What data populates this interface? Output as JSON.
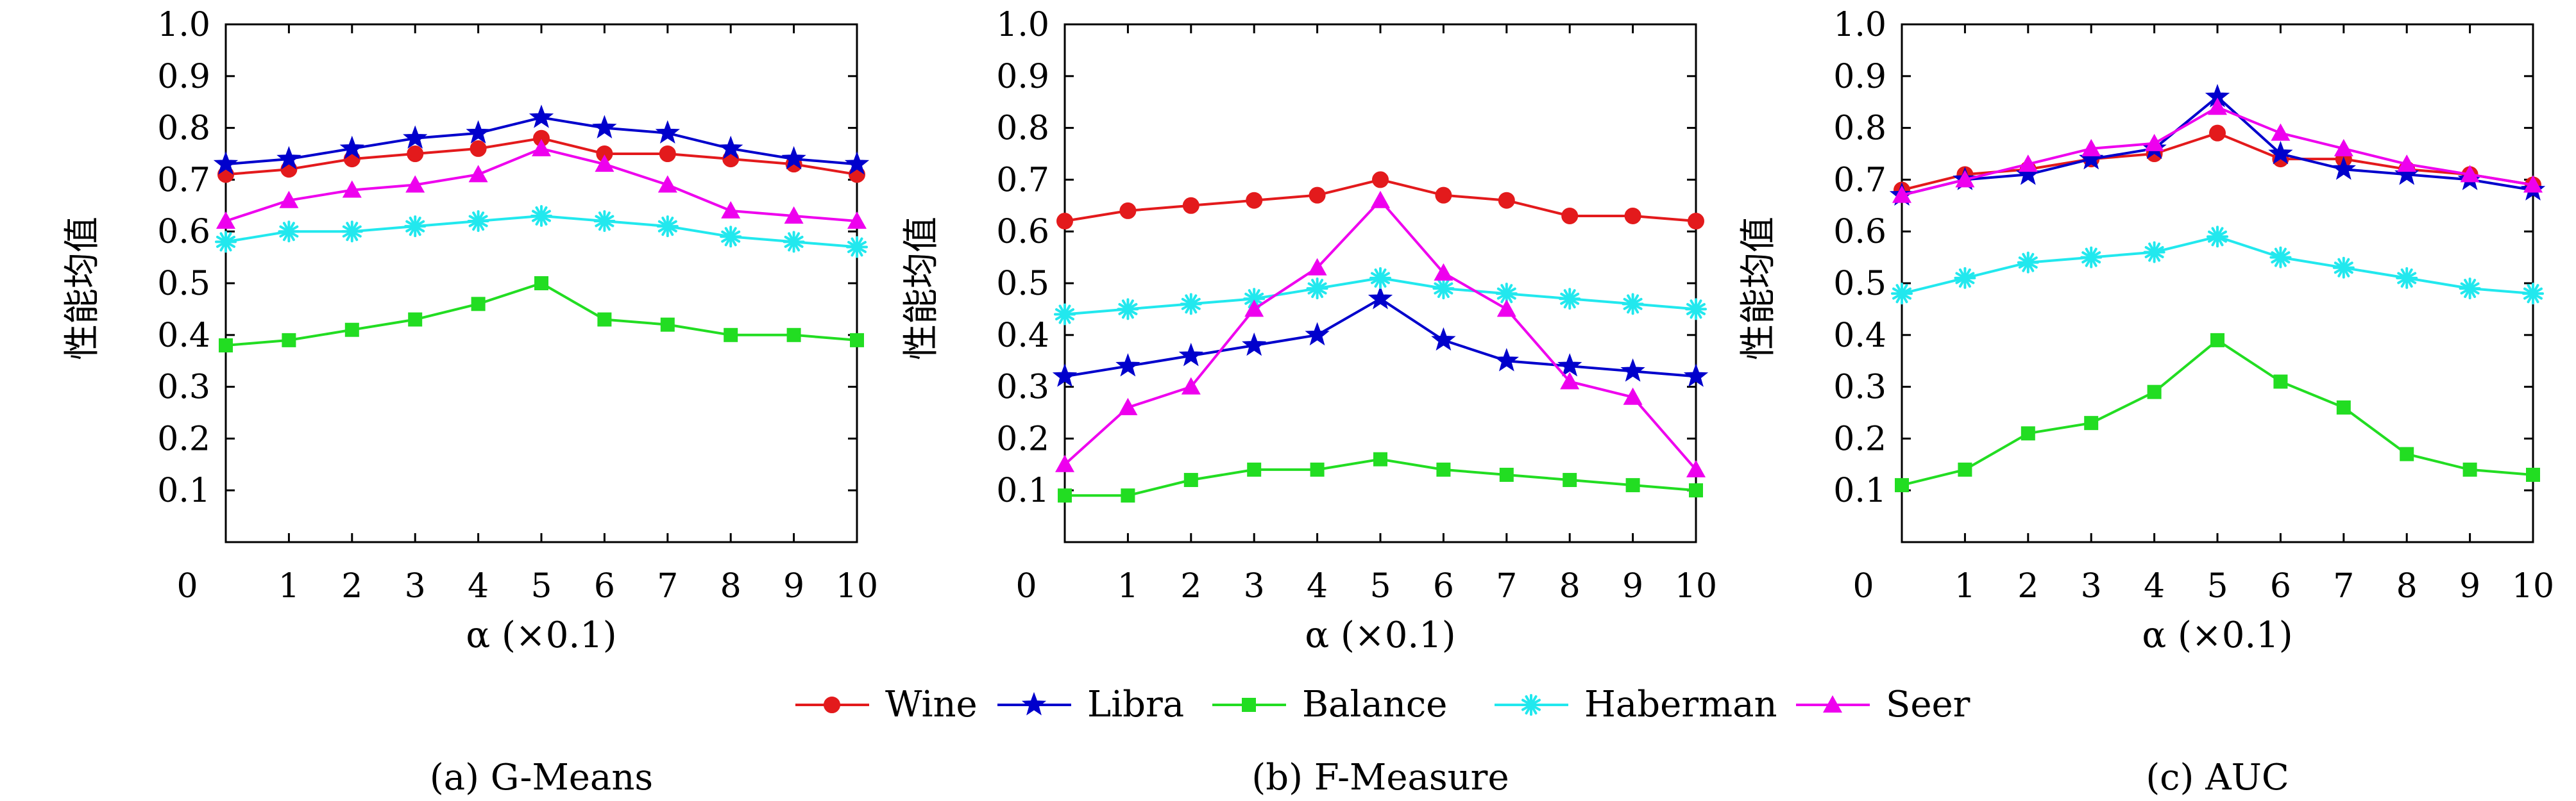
{
  "figure": {
    "legend": [
      {
        "name": "Wine",
        "color": "#e31a1c",
        "marker": "circle"
      },
      {
        "name": "Libra",
        "color": "#0000cc",
        "marker": "star"
      },
      {
        "name": "Balance",
        "color": "#22dd22",
        "marker": "square"
      },
      {
        "name": "Haberman",
        "color": "#22e8ee",
        "marker": "asterisk"
      },
      {
        "name": "Seer",
        "color": "#ee00ee",
        "marker": "triangle"
      }
    ],
    "legend_placement": "bottom-center"
  },
  "chart_data": [
    {
      "type": "line",
      "title": "",
      "caption": "(a) G-Means",
      "xlabel": "α (×0.1)",
      "ylabel": "性能均值",
      "x": [
        0,
        1,
        2,
        3,
        4,
        5,
        6,
        7,
        8,
        9,
        10
      ],
      "xlim": [
        0,
        10
      ],
      "ylim": [
        0,
        1.0
      ],
      "xticks": [
        "0",
        "1",
        "2",
        "3",
        "4",
        "5",
        "6",
        "7",
        "8",
        "9",
        "10"
      ],
      "yticks": [
        "0.1",
        "0.2",
        "0.3",
        "0.4",
        "0.5",
        "0.6",
        "0.7",
        "0.8",
        "0.9",
        "1.0"
      ],
      "grid": false,
      "series": [
        {
          "name": "Wine",
          "values": [
            0.71,
            0.72,
            0.74,
            0.75,
            0.76,
            0.78,
            0.75,
            0.75,
            0.74,
            0.73,
            0.71
          ]
        },
        {
          "name": "Libra",
          "values": [
            0.73,
            0.74,
            0.76,
            0.78,
            0.79,
            0.82,
            0.8,
            0.79,
            0.76,
            0.74,
            0.73
          ]
        },
        {
          "name": "Balance",
          "values": [
            0.38,
            0.39,
            0.41,
            0.43,
            0.46,
            0.5,
            0.43,
            0.42,
            0.4,
            0.4,
            0.39
          ]
        },
        {
          "name": "Haberman",
          "values": [
            0.58,
            0.6,
            0.6,
            0.61,
            0.62,
            0.63,
            0.62,
            0.61,
            0.59,
            0.58,
            0.57
          ]
        },
        {
          "name": "Seer",
          "values": [
            0.62,
            0.66,
            0.68,
            0.69,
            0.71,
            0.76,
            0.73,
            0.69,
            0.64,
            0.63,
            0.62
          ]
        }
      ]
    },
    {
      "type": "line",
      "title": "",
      "caption": "(b) F-Measure",
      "xlabel": "α (×0.1)",
      "ylabel": "性能均值",
      "x": [
        0,
        1,
        2,
        3,
        4,
        5,
        6,
        7,
        8,
        9,
        10
      ],
      "xlim": [
        0,
        10
      ],
      "ylim": [
        0,
        1.0
      ],
      "xticks": [
        "0",
        "1",
        "2",
        "3",
        "4",
        "5",
        "6",
        "7",
        "8",
        "9",
        "10"
      ],
      "yticks": [
        "0.1",
        "0.2",
        "0.3",
        "0.4",
        "0.5",
        "0.6",
        "0.7",
        "0.8",
        "0.9",
        "1.0"
      ],
      "grid": false,
      "series": [
        {
          "name": "Wine",
          "values": [
            0.62,
            0.64,
            0.65,
            0.66,
            0.67,
            0.7,
            0.67,
            0.66,
            0.63,
            0.63,
            0.62
          ]
        },
        {
          "name": "Libra",
          "values": [
            0.32,
            0.34,
            0.36,
            0.38,
            0.4,
            0.47,
            0.39,
            0.35,
            0.34,
            0.33,
            0.32
          ]
        },
        {
          "name": "Balance",
          "values": [
            0.09,
            0.09,
            0.12,
            0.14,
            0.14,
            0.16,
            0.14,
            0.13,
            0.12,
            0.11,
            0.1
          ]
        },
        {
          "name": "Haberman",
          "values": [
            0.44,
            0.45,
            0.46,
            0.47,
            0.49,
            0.51,
            0.49,
            0.48,
            0.47,
            0.46,
            0.45
          ]
        },
        {
          "name": "Seer",
          "values": [
            0.15,
            0.26,
            0.3,
            0.45,
            0.53,
            0.66,
            0.52,
            0.45,
            0.31,
            0.28,
            0.14
          ]
        }
      ]
    },
    {
      "type": "line",
      "title": "",
      "caption": "(c) AUC",
      "xlabel": "α (×0.1)",
      "ylabel": "性能均值",
      "x": [
        0,
        1,
        2,
        3,
        4,
        5,
        6,
        7,
        8,
        9,
        10
      ],
      "xlim": [
        0,
        10
      ],
      "ylim": [
        0,
        1.0
      ],
      "xticks": [
        "0",
        "1",
        "2",
        "3",
        "4",
        "5",
        "6",
        "7",
        "8",
        "9",
        "10"
      ],
      "yticks": [
        "0.1",
        "0.2",
        "0.3",
        "0.4",
        "0.5",
        "0.6",
        "0.7",
        "0.8",
        "0.9",
        "1.0"
      ],
      "grid": false,
      "series": [
        {
          "name": "Wine",
          "values": [
            0.68,
            0.71,
            0.72,
            0.74,
            0.75,
            0.79,
            0.74,
            0.74,
            0.72,
            0.71,
            0.69
          ]
        },
        {
          "name": "Libra",
          "values": [
            0.67,
            0.7,
            0.71,
            0.74,
            0.76,
            0.86,
            0.75,
            0.72,
            0.71,
            0.7,
            0.68
          ]
        },
        {
          "name": "Balance",
          "values": [
            0.11,
            0.14,
            0.21,
            0.23,
            0.29,
            0.39,
            0.31,
            0.26,
            0.17,
            0.14,
            0.13
          ]
        },
        {
          "name": "Haberman",
          "values": [
            0.48,
            0.51,
            0.54,
            0.55,
            0.56,
            0.59,
            0.55,
            0.53,
            0.51,
            0.49,
            0.48
          ]
        },
        {
          "name": "Seer",
          "values": [
            0.67,
            0.7,
            0.73,
            0.76,
            0.77,
            0.84,
            0.79,
            0.76,
            0.73,
            0.71,
            0.69
          ]
        }
      ]
    }
  ]
}
